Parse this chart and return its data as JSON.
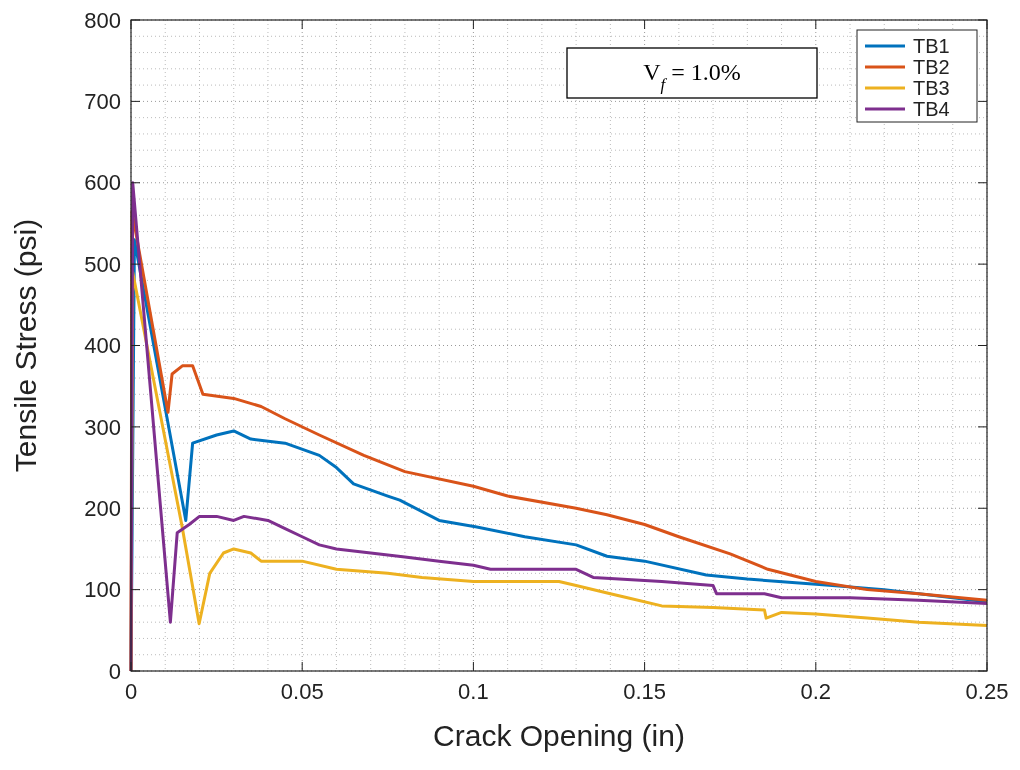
{
  "chart_data": {
    "type": "line",
    "xlabel": "Crack Opening (in)",
    "ylabel": "Tensile Stress (psi)",
    "xlim": [
      0,
      0.25
    ],
    "ylim": [
      0,
      800
    ],
    "xticks": [
      0,
      0.05,
      0.1,
      0.15,
      0.2,
      0.25
    ],
    "yticks": [
      0,
      100,
      200,
      300,
      400,
      500,
      600,
      700,
      800
    ],
    "grid": true,
    "legend": "top right",
    "line_style": "solid",
    "marker": "none",
    "annotations": [
      "V$_{f}$ = 1.0%"
    ],
    "series": [
      {
        "name": "TB1",
        "color": "#0072bd",
        "x": [
          0,
          0.001,
          0.016,
          0.018,
          0.025,
          0.03,
          0.035,
          0.045,
          0.055,
          0.06,
          0.065,
          0.075,
          0.0785,
          0.09,
          0.101,
          0.115,
          0.13,
          0.139,
          0.15,
          0.168,
          0.18,
          0.202,
          0.22,
          0.24,
          0.25
        ],
        "values": [
          0,
          530,
          185,
          280,
          290,
          295,
          285,
          280,
          265,
          250,
          230,
          215,
          210,
          185,
          177,
          165,
          155,
          141,
          135,
          118,
          113,
          106,
          100,
          90,
          85
        ]
      },
      {
        "name": "TB2",
        "color": "#d95319",
        "x": [
          0,
          0.0003,
          0.0108,
          0.012,
          0.015,
          0.018,
          0.021,
          0.03,
          0.038,
          0.045,
          0.055,
          0.068,
          0.08,
          0.1,
          0.11,
          0.13,
          0.139,
          0.15,
          0.16,
          0.175,
          0.186,
          0.2,
          0.215,
          0.23,
          0.25
        ],
        "values": [
          0,
          565,
          318,
          365,
          375,
          375,
          340,
          335,
          325,
          310,
          290,
          265,
          245,
          227,
          215,
          200,
          192,
          180,
          165,
          144,
          125,
          110,
          100,
          95,
          87
        ]
      },
      {
        "name": "TB3",
        "color": "#edb120",
        "x": [
          0,
          0.0005,
          0.0149,
          0.0199,
          0.023,
          0.027,
          0.03,
          0.035,
          0.038,
          0.05,
          0.06,
          0.075,
          0.085,
          0.1,
          0.125,
          0.13,
          0.14,
          0.145,
          0.155,
          0.17,
          0.185,
          0.1855,
          0.19,
          0.2,
          0.215,
          0.23,
          0.25
        ],
        "values": [
          0,
          490,
          178,
          58,
          120,
          145,
          150,
          145,
          135,
          135,
          125,
          120,
          115,
          110,
          110,
          105,
          95,
          90,
          80,
          78,
          75,
          65,
          72,
          70,
          65,
          60,
          56
        ]
      },
      {
        "name": "TB4",
        "color": "#7e2f8e",
        "x": [
          0,
          0.0005,
          0.0115,
          0.0135,
          0.017,
          0.02,
          0.025,
          0.03,
          0.033,
          0.04,
          0.045,
          0.05,
          0.055,
          0.06,
          0.07,
          0.08,
          0.09,
          0.1,
          0.105,
          0.13,
          0.135,
          0.155,
          0.17,
          0.171,
          0.185,
          0.19,
          0.21,
          0.23,
          0.25
        ],
        "values": [
          0,
          600,
          60,
          170,
          180,
          190,
          190,
          185,
          190,
          185,
          175,
          165,
          155,
          150,
          145,
          140,
          135,
          130,
          125,
          125,
          115,
          110,
          105,
          95,
          95,
          90,
          90,
          87,
          83
        ]
      }
    ]
  }
}
